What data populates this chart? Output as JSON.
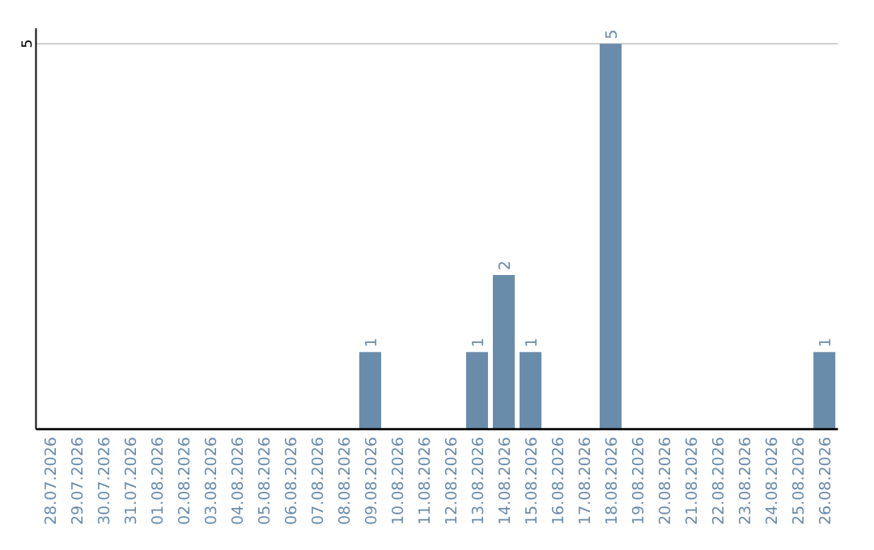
{
  "chart_data": {
    "type": "bar",
    "categories": [
      "28.07.2026",
      "29.07.2026",
      "30.07.2026",
      "31.07.2026",
      "01.08.2026",
      "02.08.2026",
      "03.08.2026",
      "04.08.2026",
      "05.08.2026",
      "06.08.2026",
      "07.08.2026",
      "08.08.2026",
      "09.08.2026",
      "10.08.2026",
      "11.08.2026",
      "12.08.2026",
      "13.08.2026",
      "14.08.2026",
      "15.08.2026",
      "16.08.2026",
      "17.08.2026",
      "18.08.2026",
      "19.08.2026",
      "20.08.2026",
      "21.08.2026",
      "22.08.2026",
      "23.08.2026",
      "24.08.2026",
      "25.08.2026",
      "26.08.2026"
    ],
    "values": [
      null,
      null,
      null,
      null,
      null,
      null,
      null,
      null,
      null,
      null,
      null,
      null,
      1,
      null,
      null,
      null,
      1,
      2,
      1,
      null,
      null,
      5,
      null,
      null,
      null,
      null,
      null,
      null,
      null,
      1
    ],
    "data_labels": true,
    "color": "#6a8cab",
    "ylim": [
      0,
      5.2
    ],
    "yticks": [
      5
    ],
    "grid": "y"
  }
}
